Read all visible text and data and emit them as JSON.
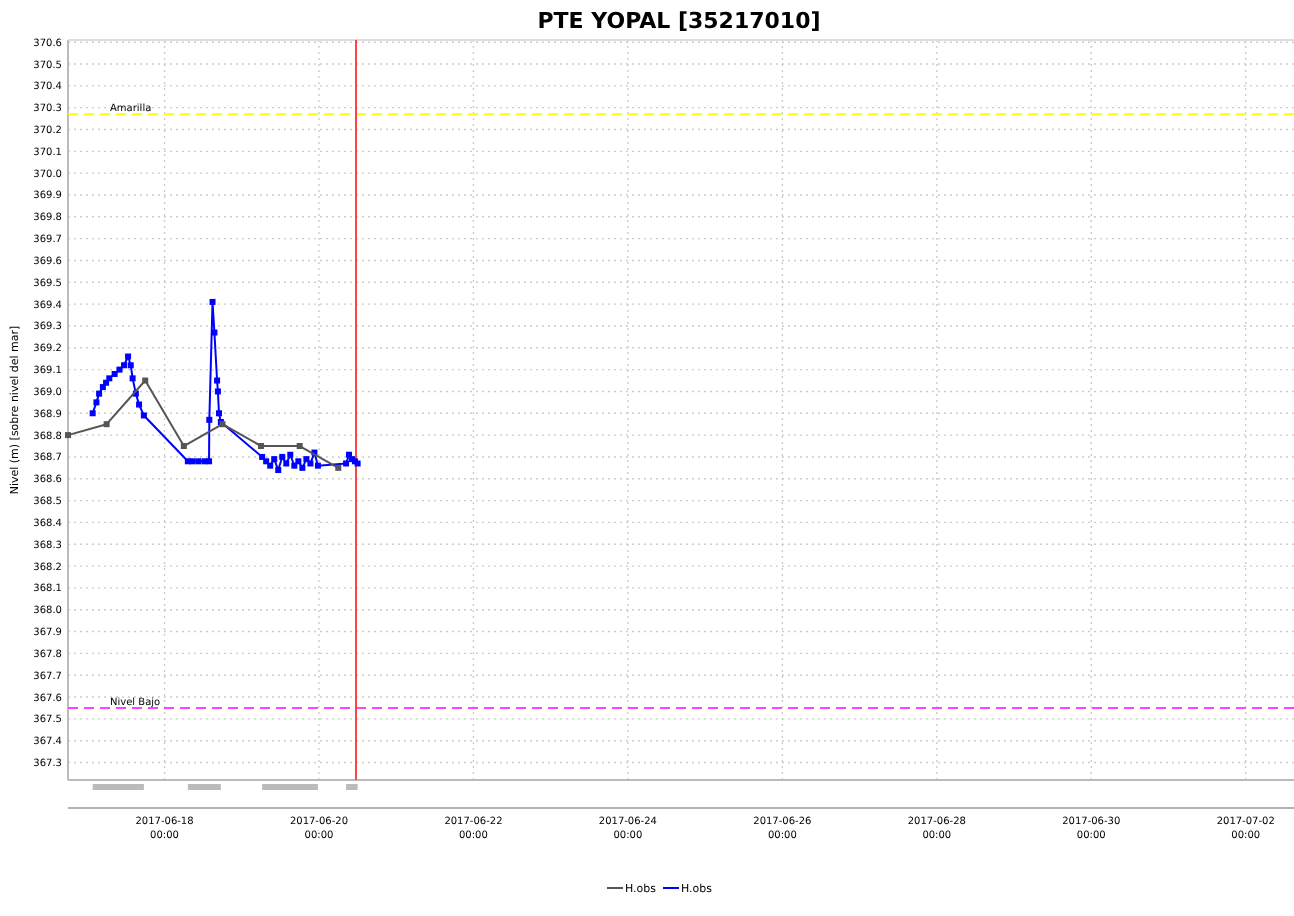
{
  "chart_data": {
    "type": "line",
    "title": "PTE YOPAL [35217010]",
    "ylabel": "Nivel (m)  [sobre nivel del mar]",
    "xlim": [
      "2017-06-16T18:00",
      "2017-07-02T15:00"
    ],
    "ylim": [
      367.22,
      370.61
    ],
    "xticks": [
      {
        "value": "2017-06-18",
        "label": "2017-06-18 00:00"
      },
      {
        "value": "2017-06-20",
        "label": "2017-06-20 00:00"
      },
      {
        "value": "2017-06-22",
        "label": "2017-06-22 00:00"
      },
      {
        "value": "2017-06-24",
        "label": "2017-06-24 00:00"
      },
      {
        "value": "2017-06-26",
        "label": "2017-06-26 00:00"
      },
      {
        "value": "2017-06-28",
        "label": "2017-06-28 00:00"
      },
      {
        "value": "2017-06-30",
        "label": "2017-06-30 00:00"
      },
      {
        "value": "2017-07-02",
        "label": "2017-07-02 00:00"
      }
    ],
    "yticks": [
      367.3,
      367.4,
      367.5,
      367.6,
      367.7,
      367.8,
      367.9,
      {
        "value": 368,
        "label": "368.0"
      },
      368.1,
      368.2,
      368.3,
      368.4,
      368.5,
      368.6,
      368.7,
      368.8,
      368.9,
      {
        "value": 369,
        "label": "369.0"
      },
      369.1,
      369.2,
      369.3,
      369.4,
      369.5,
      369.6,
      369.7,
      369.8,
      369.9,
      {
        "value": 370,
        "label": "370.0"
      },
      370.1,
      370.2,
      370.3,
      370.4,
      370.5,
      370.6
    ],
    "grid": true,
    "legend": "bottom",
    "marker": "square",
    "line_style": "solid",
    "series": [
      {
        "name": "H.obs",
        "color": "#555555",
        "x": [
          "2017-06-16T18:00",
          "2017-06-17T06:00",
          "2017-06-17T18:00",
          "2017-06-18T06:00",
          "2017-06-18T18:00",
          "2017-06-19T06:00",
          "2017-06-19T18:00",
          "2017-06-20T06:00"
        ],
        "values": [
          368.8,
          368.85,
          369.05,
          368.75,
          368.85,
          368.75,
          368.75,
          368.65
        ]
      },
      {
        "name": "H.obs",
        "color": "#0000ff",
        "x": [
          "2017-06-17T01:40",
          "2017-06-17T02:50",
          "2017-06-17T03:40",
          "2017-06-17T04:50",
          "2017-06-17T05:50",
          "2017-06-17T06:50",
          "2017-06-17T08:30",
          "2017-06-17T10:00",
          "2017-06-17T11:25",
          "2017-06-17T12:40",
          "2017-06-17T13:30",
          "2017-06-17T14:05",
          "2017-06-17T15:05",
          "2017-06-17T16:05",
          "2017-06-17T17:35",
          "2017-06-18T07:15",
          "2017-06-18T08:40",
          "2017-06-18T10:30",
          "2017-06-18T12:25",
          "2017-06-18T13:50",
          "2017-06-18T13:55",
          "2017-06-18T14:55",
          "2017-06-18T15:30",
          "2017-06-18T16:20",
          "2017-06-18T16:35",
          "2017-06-18T16:55",
          "2017-06-18T17:30",
          "2017-06-19T06:20",
          "2017-06-19T07:35",
          "2017-06-19T08:50",
          "2017-06-19T10:05",
          "2017-06-19T11:20",
          "2017-06-19T12:35",
          "2017-06-19T13:50",
          "2017-06-19T15:05",
          "2017-06-19T16:20",
          "2017-06-19T17:35",
          "2017-06-19T18:50",
          "2017-06-19T20:05",
          "2017-06-19T21:20",
          "2017-06-19T22:35",
          "2017-06-19T23:40",
          "2017-06-20T08:25",
          "2017-06-20T09:20",
          "2017-06-20T10:15",
          "2017-06-20T11:10",
          "2017-06-20T12:00"
        ],
        "values": [
          368.9,
          368.95,
          368.99,
          369.02,
          369.04,
          369.06,
          369.08,
          369.1,
          369.12,
          369.16,
          369.12,
          369.06,
          368.99,
          368.94,
          368.89,
          368.68,
          368.68,
          368.68,
          368.68,
          368.68,
          368.87,
          369.41,
          369.27,
          369.05,
          369.0,
          368.9,
          368.86,
          368.7,
          368.68,
          368.66,
          368.69,
          368.64,
          368.7,
          368.67,
          368.71,
          368.66,
          368.68,
          368.65,
          368.69,
          368.67,
          368.72,
          368.66,
          368.67,
          368.71,
          368.69,
          368.68,
          368.67
        ]
      }
    ],
    "ref_lines": [
      {
        "axis": "y",
        "value": 370.27,
        "label": "Amarilla",
        "color": "#ffff00",
        "line_style": "dashed"
      },
      {
        "axis": "y",
        "value": 367.55,
        "label": "Nivel Bajo",
        "color": "#ff44ff",
        "line_style": "dashed"
      },
      {
        "axis": "x",
        "value": "2017-06-20T11:30",
        "color": "#ff4444",
        "line_style": "solid"
      }
    ]
  }
}
